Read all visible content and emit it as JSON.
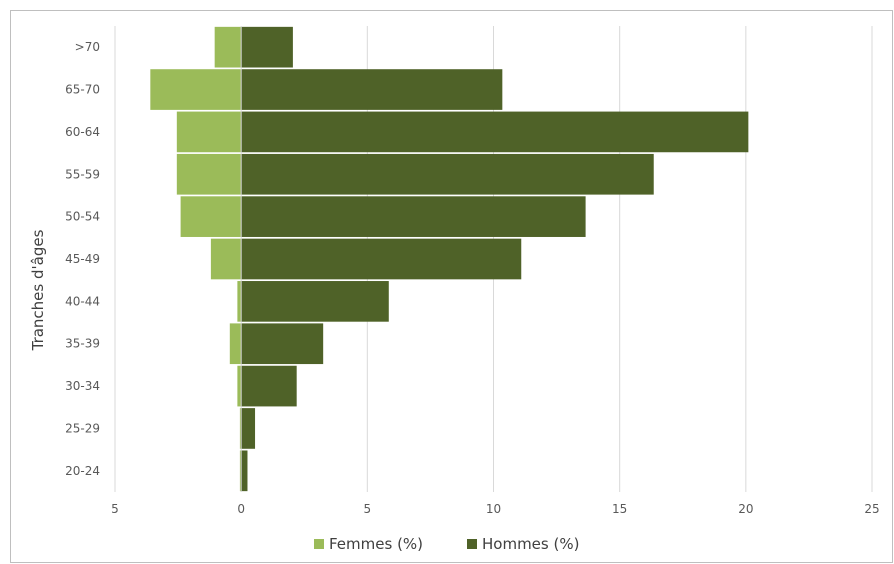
{
  "chart_data": {
    "type": "bar",
    "orientation": "horizontal",
    "title": "",
    "ylabel": "Tranches d'âges",
    "xlabel": "",
    "categories": [
      "20-24",
      "25-29",
      "30-34",
      "35-39",
      "40-44",
      "45-49",
      "50-54",
      "55-59",
      "60-64",
      "65-70",
      ">70"
    ],
    "series": [
      {
        "name": "Femmes (%)",
        "color": "#9bbb59",
        "values": [
          0.05,
          0.05,
          0.15,
          0.45,
          0.15,
          1.2,
          2.4,
          2.55,
          2.55,
          3.6,
          1.05
        ]
      },
      {
        "name": "Hommes (%)",
        "color": "#4f6228",
        "values": [
          0.25,
          0.55,
          2.2,
          3.25,
          5.85,
          11.1,
          13.65,
          16.35,
          20.1,
          10.35,
          2.05
        ]
      }
    ],
    "x_ticks": [
      "5",
      "0",
      "5",
      "10",
      "15",
      "20",
      "25"
    ],
    "xlim": [
      -5,
      25
    ],
    "grid": true,
    "legend_position": "bottom"
  }
}
